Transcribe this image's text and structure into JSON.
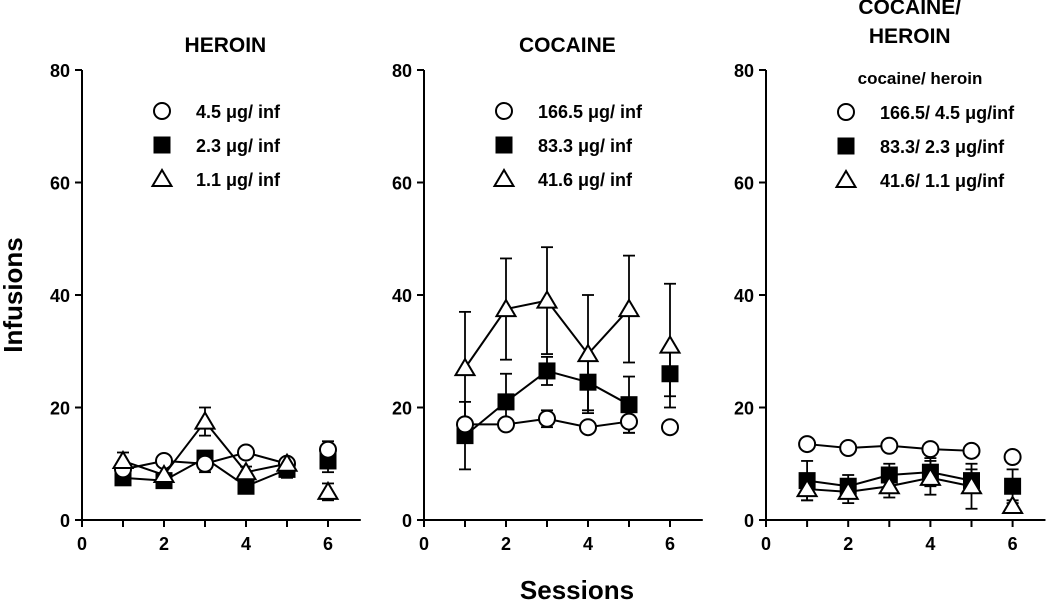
{
  "figure": {
    "y_axis_label": "Infusions",
    "x_axis_label": "Sessions"
  },
  "chart_data": [
    {
      "type": "line",
      "title": [
        "HEROIN"
      ],
      "xlabel": "Sessions",
      "ylabel": "Infusions",
      "xlim": [
        0,
        6.8
      ],
      "ylim": [
        0,
        80
      ],
      "xticks": [
        "0",
        "2",
        "4",
        "6"
      ],
      "yticks": [
        "0",
        "20",
        "40",
        "60",
        "80"
      ],
      "grid": false,
      "legend_heading": "",
      "legend_position": "top-right",
      "series": [
        {
          "name": "4.5 μg/ inf",
          "marker": "circle-open",
          "points": [
            {
              "x": 1,
              "y": 9
            },
            {
              "x": 2,
              "y": 10.5
            },
            {
              "x": 3,
              "y": 10
            },
            {
              "x": 4,
              "y": 12
            },
            {
              "x": 5,
              "y": 10
            },
            {
              "x": 6,
              "y": 12.5
            }
          ],
          "errors": [
            1,
            1,
            1.5,
            1,
            1,
            1.5
          ]
        },
        {
          "name": "2.3 μg/ inf",
          "marker": "square-filled",
          "points": [
            {
              "x": 1,
              "y": 7.5
            },
            {
              "x": 2,
              "y": 7
            },
            {
              "x": 3,
              "y": 11
            },
            {
              "x": 4,
              "y": 6
            },
            {
              "x": 5,
              "y": 9
            },
            {
              "x": 6,
              "y": 10.5
            }
          ],
          "errors": [
            1,
            1,
            1,
            1,
            1.5,
            2
          ]
        },
        {
          "name": "1.1 μg/ inf",
          "marker": "triangle-open",
          "points": [
            {
              "x": 1,
              "y": 10.5
            },
            {
              "x": 2,
              "y": 8
            },
            {
              "x": 3,
              "y": 17.5
            },
            {
              "x": 4,
              "y": 8.5
            },
            {
              "x": 5,
              "y": 10
            },
            {
              "x": 6,
              "y": 5
            }
          ],
          "errors": [
            1.5,
            1.5,
            2.5,
            1,
            1,
            1.5
          ]
        }
      ]
    },
    {
      "type": "line",
      "title": [
        "COCAINE"
      ],
      "xlabel": "Sessions",
      "ylabel": "Infusions",
      "xlim": [
        0,
        6.8
      ],
      "ylim": [
        0,
        80
      ],
      "xticks": [
        "0",
        "2",
        "4",
        "6"
      ],
      "yticks": [
        "0",
        "20",
        "40",
        "60",
        "80"
      ],
      "grid": false,
      "legend_heading": "",
      "legend_position": "top-right",
      "series": [
        {
          "name": "166.5 μg/ inf",
          "marker": "circle-open",
          "points": [
            {
              "x": 1,
              "y": 17
            },
            {
              "x": 2,
              "y": 17
            },
            {
              "x": 3,
              "y": 18
            },
            {
              "x": 4,
              "y": 16.5
            },
            {
              "x": 5,
              "y": 17.5
            },
            {
              "x": 6,
              "y": 16.5
            }
          ],
          "errors": [
            1,
            1,
            1.5,
            1,
            2,
            1
          ]
        },
        {
          "name": "83.3 μg/ inf",
          "marker": "square-filled",
          "points": [
            {
              "x": 1,
              "y": 15
            },
            {
              "x": 2,
              "y": 21
            },
            {
              "x": 3,
              "y": 26.5
            },
            {
              "x": 4,
              "y": 24.5
            },
            {
              "x": 5,
              "y": 20.5
            },
            {
              "x": 6,
              "y": 26
            }
          ],
          "errors": [
            6,
            5,
            2.5,
            5,
            5,
            4
          ]
        },
        {
          "name": "41.6 μg/ inf",
          "marker": "triangle-open",
          "points": [
            {
              "x": 1,
              "y": 27
            },
            {
              "x": 2,
              "y": 37.5
            },
            {
              "x": 3,
              "y": 39
            },
            {
              "x": 4,
              "y": 29.5
            },
            {
              "x": 5,
              "y": 37.5
            },
            {
              "x": 6,
              "y": 31
            }
          ],
          "errors": [
            10,
            9,
            9.5,
            10.5,
            9.5,
            11
          ]
        }
      ]
    },
    {
      "type": "line",
      "title": [
        "COCAINE/",
        "HEROIN"
      ],
      "xlabel": "Sessions",
      "ylabel": "Infusions",
      "xlim": [
        0,
        6.8
      ],
      "ylim": [
        0,
        80
      ],
      "xticks": [
        "0",
        "2",
        "4",
        "6"
      ],
      "yticks": [
        "0",
        "20",
        "40",
        "60",
        "80"
      ],
      "grid": false,
      "legend_heading": "cocaine/ heroin",
      "legend_position": "top-right",
      "series": [
        {
          "name": "166.5/ 4.5 μg/inf",
          "marker": "circle-open",
          "points": [
            {
              "x": 1,
              "y": 13.5
            },
            {
              "x": 2,
              "y": 12.8
            },
            {
              "x": 3,
              "y": 13.2
            },
            {
              "x": 4,
              "y": 12.6
            },
            {
              "x": 5,
              "y": 12.3
            },
            {
              "x": 6,
              "y": 11.2
            }
          ],
          "errors": [
            0.7,
            0.7,
            0.7,
            0.7,
            0.7,
            0.7
          ]
        },
        {
          "name": "83.3/ 2.3 μg/inf",
          "marker": "square-filled",
          "points": [
            {
              "x": 1,
              "y": 7
            },
            {
              "x": 2,
              "y": 6
            },
            {
              "x": 3,
              "y": 8
            },
            {
              "x": 4,
              "y": 8.5
            },
            {
              "x": 5,
              "y": 7
            },
            {
              "x": 6,
              "y": 6
            }
          ],
          "errors": [
            3.5,
            2,
            2,
            2.5,
            2,
            3
          ]
        },
        {
          "name": "41.6/ 1.1 μg/inf",
          "marker": "triangle-open",
          "points": [
            {
              "x": 1,
              "y": 5.5
            },
            {
              "x": 2,
              "y": 5
            },
            {
              "x": 3,
              "y": 6
            },
            {
              "x": 4,
              "y": 7.5
            },
            {
              "x": 5,
              "y": 6
            },
            {
              "x": 6,
              "y": 2.5
            }
          ],
          "errors": [
            2,
            2,
            2,
            3,
            4,
            1
          ]
        }
      ]
    }
  ]
}
